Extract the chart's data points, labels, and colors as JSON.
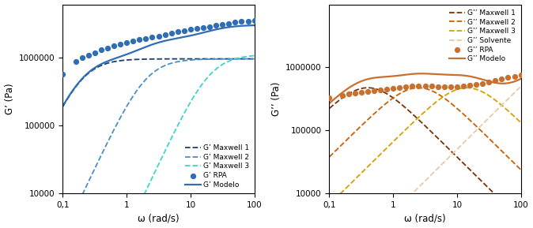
{
  "left": {
    "ylabel": "G’ (Pa)",
    "xlabel": "ω (rad/s)",
    "ylim": [
      10000,
      6000000
    ],
    "xlim": [
      0.1,
      100
    ],
    "maxwell1": {
      "G": 950000,
      "tau": 5.0,
      "color": "#1c3f6e",
      "lw": 1.3
    },
    "maxwell2": {
      "G": 950000,
      "tau": 0.5,
      "color": "#4a8fc4",
      "lw": 1.3
    },
    "maxwell3": {
      "G": 1100000,
      "tau": 0.05,
      "color": "#3dd6c8",
      "lw": 1.3
    },
    "model_color": "#2f6db5",
    "rpa_color": "#2f6db5",
    "rpa_omega": [
      0.1,
      0.16,
      0.2,
      0.25,
      0.32,
      0.4,
      0.5,
      0.63,
      0.79,
      1.0,
      1.26,
      1.58,
      2.0,
      2.51,
      3.16,
      3.98,
      5.01,
      6.31,
      7.94,
      10.0,
      12.59,
      15.85,
      19.95,
      25.12,
      31.62,
      39.81,
      50.12,
      63.1,
      79.4,
      100.0
    ],
    "rpa_G": [
      560000,
      870000,
      990000,
      1080000,
      1170000,
      1280000,
      1380000,
      1470000,
      1560000,
      1650000,
      1740000,
      1820000,
      1900000,
      1980000,
      2060000,
      2160000,
      2280000,
      2380000,
      2460000,
      2560000,
      2660000,
      2750000,
      2840000,
      2950000,
      3060000,
      3160000,
      3260000,
      3350000,
      3430000,
      3500000
    ],
    "legend_entries": [
      "G’ Maxwell 1",
      "G’ Maxwell 2",
      "G’ Maxwell 3",
      "G’ RPA",
      "G’ Modelo"
    ]
  },
  "right": {
    "ylabel": "G’’ (Pa)",
    "xlabel": "ω (rad/s)",
    "ylim": [
      10000,
      10000000
    ],
    "xlim": [
      0.1,
      100
    ],
    "maxwell1": {
      "G": 950000,
      "tau": 2.5,
      "color": "#7B3000",
      "lw": 1.3
    },
    "maxwell2": {
      "G": 950000,
      "tau": 0.4,
      "color": "#C86000",
      "lw": 1.3
    },
    "maxwell3": {
      "G": 950000,
      "tau": 0.07,
      "color": "#D4A000",
      "lw": 1.3
    },
    "solvente": {
      "eta": 5000,
      "color": "#e8c8a8",
      "lw": 1.3
    },
    "model_color": "#C87030",
    "rpa_color": "#C87030",
    "rpa_omega": [
      0.1,
      0.16,
      0.2,
      0.25,
      0.32,
      0.4,
      0.5,
      0.63,
      0.79,
      1.0,
      1.26,
      1.58,
      2.0,
      2.51,
      3.16,
      3.98,
      5.01,
      6.31,
      7.94,
      10.0,
      12.59,
      15.85,
      19.95,
      25.12,
      31.62,
      39.81,
      50.12,
      63.1,
      79.4,
      100.0
    ],
    "rpa_G": [
      330000,
      360000,
      375000,
      390000,
      400000,
      415000,
      425000,
      440000,
      455000,
      465000,
      475000,
      490000,
      505000,
      510000,
      510000,
      500000,
      495000,
      490000,
      490000,
      495000,
      505000,
      520000,
      540000,
      560000,
      590000,
      620000,
      655000,
      690000,
      720000,
      760000
    ],
    "legend_entries": [
      "G’’ Maxwell 1",
      "G’’ Maxwell 2",
      "G’’ Maxwell 3",
      "G’’ Solvente",
      "G’’ RPA",
      "G’’ Modelo"
    ]
  },
  "bg_color": "#ffffff",
  "fontsize": 8.5,
  "tick_fontsize": 7.5
}
